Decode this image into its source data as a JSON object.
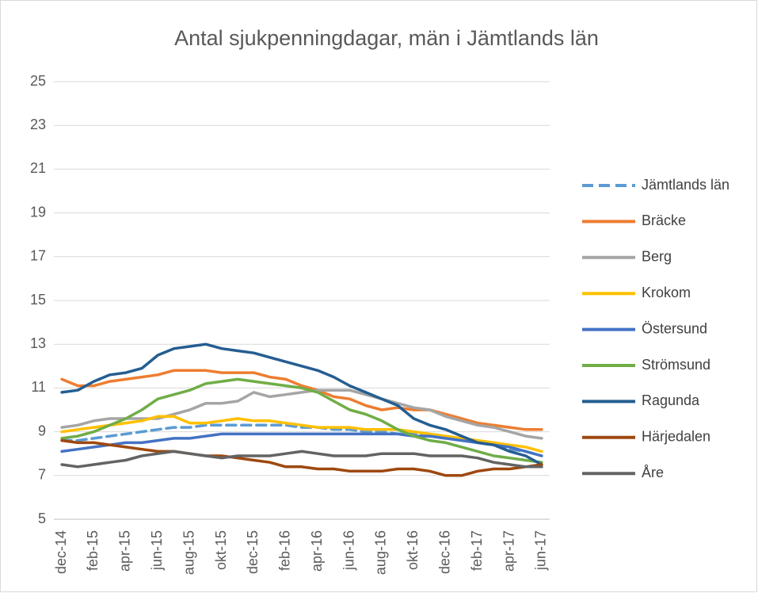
{
  "chart_data": {
    "type": "line",
    "title": "Antal sjukpenningdagar, män i Jämtlands län",
    "categories": [
      "dec-14",
      null,
      "feb-15",
      null,
      "apr-15",
      null,
      "jun-15",
      null,
      "aug-15",
      null,
      "okt-15",
      null,
      "dec-15",
      null,
      "feb-16",
      null,
      "apr-16",
      null,
      "jun-16",
      null,
      "aug-16",
      null,
      "okt-16",
      null,
      "dec-16",
      null,
      "feb-17",
      null,
      "apr-17",
      null,
      "jun-17"
    ],
    "ylim": [
      5,
      25
    ],
    "yticks": [
      5,
      7,
      9,
      11,
      13,
      15,
      17,
      19,
      21,
      23,
      25
    ],
    "grid": true,
    "legend": "right",
    "series": [
      {
        "name": "Jämtlands län",
        "color": "#5b9bd5",
        "line_style": "dashed",
        "values": [
          8.6,
          8.6,
          8.7,
          8.8,
          8.9,
          9.0,
          9.1,
          9.2,
          9.2,
          9.3,
          9.3,
          9.3,
          9.3,
          9.3,
          9.3,
          9.2,
          9.2,
          9.1,
          9.1,
          9.0,
          9.0,
          8.9,
          8.9,
          8.8,
          8.7,
          8.6,
          8.5,
          8.4,
          8.2,
          8.1,
          7.9
        ]
      },
      {
        "name": "Bräcke",
        "color": "#ed7d31",
        "line_style": "solid",
        "values": [
          11.4,
          11.1,
          11.1,
          11.3,
          11.4,
          11.5,
          11.6,
          11.8,
          11.8,
          11.8,
          11.7,
          11.7,
          11.7,
          11.5,
          11.4,
          11.1,
          10.9,
          10.6,
          10.5,
          10.2,
          10.0,
          10.1,
          10.0,
          10.0,
          9.8,
          9.6,
          9.4,
          9.3,
          9.2,
          9.1,
          9.1
        ]
      },
      {
        "name": "Berg",
        "color": "#a5a5a5",
        "line_style": "solid",
        "values": [
          9.2,
          9.3,
          9.5,
          9.6,
          9.6,
          9.6,
          9.6,
          9.8,
          10.0,
          10.3,
          10.3,
          10.4,
          10.8,
          10.6,
          10.7,
          10.8,
          10.9,
          10.9,
          10.9,
          10.7,
          10.5,
          10.3,
          10.1,
          10.0,
          9.7,
          9.5,
          9.3,
          9.2,
          9.0,
          8.8,
          8.7
        ]
      },
      {
        "name": "Krokom",
        "color": "#ffc000",
        "line_style": "solid",
        "values": [
          9.0,
          9.1,
          9.2,
          9.3,
          9.4,
          9.5,
          9.7,
          9.7,
          9.4,
          9.4,
          9.5,
          9.6,
          9.5,
          9.5,
          9.4,
          9.3,
          9.2,
          9.2,
          9.2,
          9.1,
          9.1,
          9.1,
          9.0,
          8.9,
          8.8,
          8.7,
          8.6,
          8.5,
          8.4,
          8.3,
          8.1
        ]
      },
      {
        "name": "Östersund",
        "color": "#4472c4",
        "line_style": "solid",
        "values": [
          8.1,
          8.2,
          8.3,
          8.4,
          8.5,
          8.5,
          8.6,
          8.7,
          8.7,
          8.8,
          8.9,
          8.9,
          8.9,
          8.9,
          8.9,
          8.9,
          8.9,
          8.9,
          8.9,
          8.9,
          8.9,
          8.9,
          8.8,
          8.8,
          8.7,
          8.6,
          8.5,
          8.4,
          8.3,
          8.1,
          7.9
        ]
      },
      {
        "name": "Strömsund",
        "color": "#70ad47",
        "line_style": "solid",
        "values": [
          8.7,
          8.8,
          9.0,
          9.3,
          9.6,
          10.0,
          10.5,
          10.7,
          10.9,
          11.2,
          11.3,
          11.4,
          11.3,
          11.2,
          11.1,
          11.0,
          10.8,
          10.4,
          10.0,
          9.8,
          9.5,
          9.1,
          8.8,
          8.6,
          8.5,
          8.3,
          8.1,
          7.9,
          7.8,
          7.7,
          7.6
        ]
      },
      {
        "name": "Ragunda",
        "color": "#255e91",
        "line_style": "solid",
        "values": [
          10.8,
          10.9,
          11.3,
          11.6,
          11.7,
          11.9,
          12.5,
          12.8,
          12.9,
          13.0,
          12.8,
          12.7,
          12.6,
          12.4,
          12.2,
          12.0,
          11.8,
          11.5,
          11.1,
          10.8,
          10.5,
          10.2,
          9.6,
          9.3,
          9.1,
          8.8,
          8.5,
          8.4,
          8.1,
          7.9,
          7.5
        ]
      },
      {
        "name": "Härjedalen",
        "color": "#9e480e",
        "line_style": "solid",
        "values": [
          8.6,
          8.5,
          8.5,
          8.4,
          8.3,
          8.2,
          8.1,
          8.1,
          8.0,
          7.9,
          7.9,
          7.8,
          7.7,
          7.6,
          7.4,
          7.4,
          7.3,
          7.3,
          7.2,
          7.2,
          7.2,
          7.3,
          7.3,
          7.2,
          7.0,
          7.0,
          7.2,
          7.3,
          7.3,
          7.4,
          7.5
        ]
      },
      {
        "name": "Åre",
        "color": "#636363",
        "line_style": "solid",
        "values": [
          7.5,
          7.4,
          7.5,
          7.6,
          7.7,
          7.9,
          8.0,
          8.1,
          8.0,
          7.9,
          7.8,
          7.9,
          7.9,
          7.9,
          8.0,
          8.1,
          8.0,
          7.9,
          7.9,
          7.9,
          8.0,
          8.0,
          8.0,
          7.9,
          7.9,
          7.9,
          7.8,
          7.6,
          7.5,
          7.4,
          7.4
        ]
      }
    ]
  }
}
